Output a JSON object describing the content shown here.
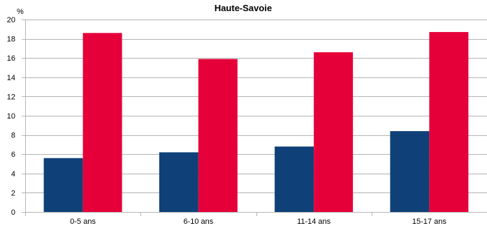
{
  "chart_data": {
    "type": "bar",
    "title": "Haute-Savoie",
    "unit_label": "%",
    "xlabel": "",
    "ylabel": "",
    "categories": [
      "0-5 ans",
      "6-10 ans",
      "11-14 ans",
      "15-17 ans"
    ],
    "series": [
      {
        "color": "#0f4178",
        "values": [
          5.6,
          6.2,
          6.8,
          8.4
        ]
      },
      {
        "color": "#e5003a",
        "values": [
          18.6,
          15.9,
          16.6,
          18.7
        ]
      }
    ],
    "ylim": [
      0,
      20
    ],
    "yticks": [
      0,
      2,
      4,
      6,
      8,
      10,
      12,
      14,
      16,
      18,
      20
    ],
    "grid": true,
    "legend": "none"
  }
}
